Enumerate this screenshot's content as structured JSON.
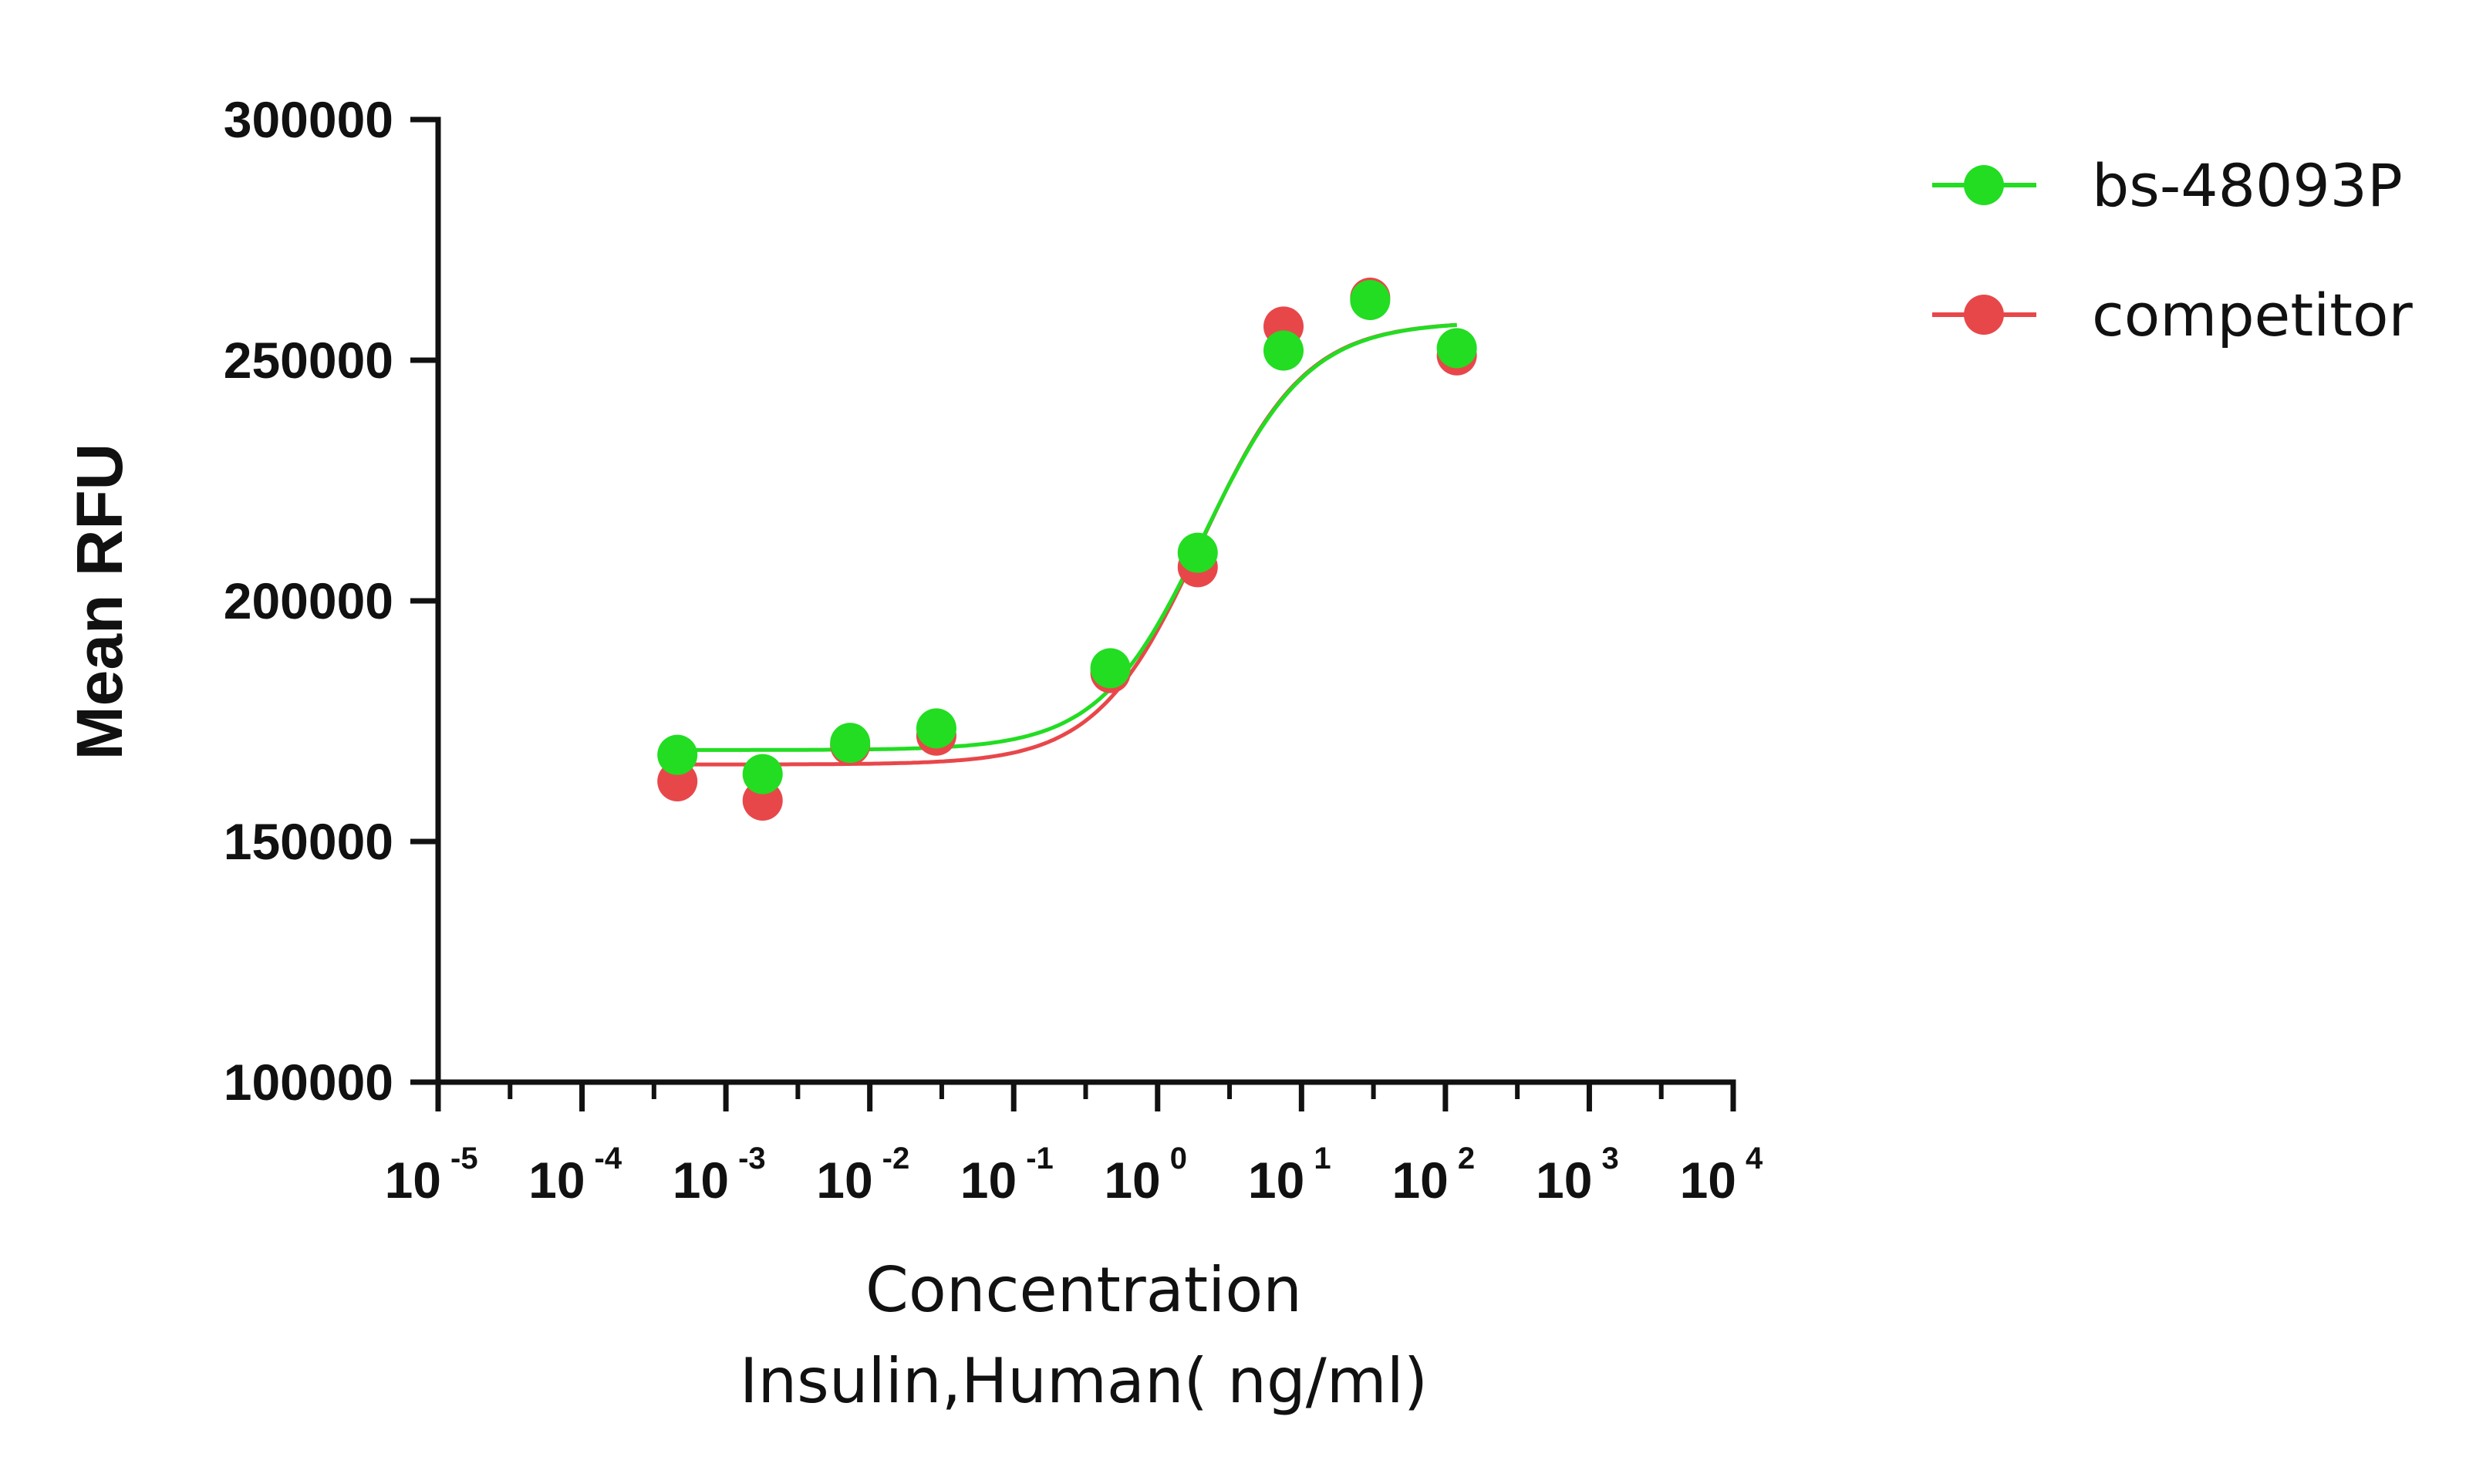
{
  "chart_data": {
    "type": "scatter",
    "title": "",
    "xlabel": [
      "Concentration",
      "Insulin,Human( ng/ml)"
    ],
    "ylabel": "Mean RFU",
    "x_scale": "log10",
    "xlim": [
      1e-05,
      10000
    ],
    "ylim": [
      100000,
      300000
    ],
    "x_ticks": [
      {
        "base": "10",
        "exp": "-5",
        "value": 1e-05
      },
      {
        "base": "10",
        "exp": "-4",
        "value": 0.0001
      },
      {
        "base": "10",
        "exp": "-3",
        "value": 0.001
      },
      {
        "base": "10",
        "exp": "-2",
        "value": 0.01
      },
      {
        "base": "10",
        "exp": "-1",
        "value": 0.1
      },
      {
        "base": "10",
        "exp": "0",
        "value": 1
      },
      {
        "base": "10",
        "exp": "1",
        "value": 10
      },
      {
        "base": "10",
        "exp": "2",
        "value": 100
      },
      {
        "base": "10",
        "exp": "3",
        "value": 1000
      },
      {
        "base": "10",
        "exp": "4",
        "value": 10000
      }
    ],
    "y_ticks": [
      {
        "label": "300000",
        "value": 300000
      },
      {
        "label": "250000",
        "value": 250000
      },
      {
        "label": "200000",
        "value": 200000
      },
      {
        "label": "150000",
        "value": 150000
      },
      {
        "label": "100000",
        "value": 100000
      }
    ],
    "x": [
      0.00046,
      0.0018,
      0.0073,
      0.029,
      0.47,
      1.9,
      7.5,
      30,
      120
    ],
    "grid": false,
    "legend_position": "top-right",
    "series": [
      {
        "name": "competitor",
        "color": "#e8474a",
        "values": [
          162500,
          158500,
          170000,
          172000,
          185000,
          207000,
          257000,
          263000,
          251000
        ],
        "fit": {
          "bottom": 166000,
          "top": 258000,
          "log_ec50": 0.3,
          "hill": 1.2
        }
      },
      {
        "name": "bs-48093P",
        "color": "#22dd22",
        "values": [
          168000,
          164000,
          170500,
          173500,
          186000,
          210000,
          252000,
          262500,
          252500
        ],
        "fit": {
          "bottom": 169000,
          "top": 258000,
          "log_ec50": 0.32,
          "hill": 1.2
        }
      }
    ],
    "legend": [
      {
        "name": "bs-48093P",
        "color": "#22dd22"
      },
      {
        "name": "competitor",
        "color": "#e8474a"
      }
    ]
  }
}
